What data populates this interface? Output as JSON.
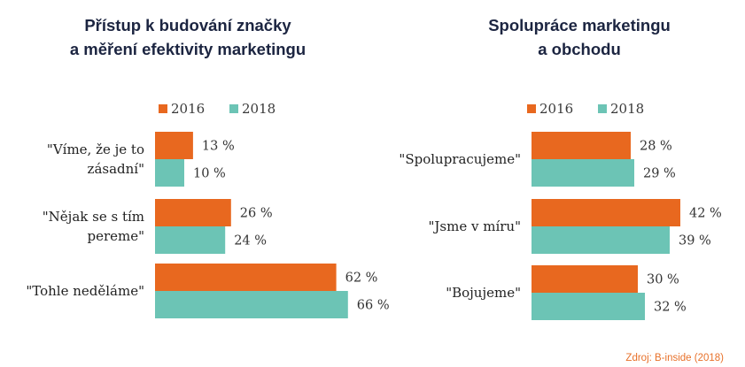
{
  "colors": {
    "y2016": "#e8681f",
    "y2018": "#6cc4b5"
  },
  "source": "Zdroj: B-inside (2018)",
  "chart_data": [
    {
      "type": "bar",
      "orientation": "horizontal",
      "title": [
        "Přístup k budování značky",
        "a měření efektivity marketingu"
      ],
      "legend": [
        "2016",
        "2018"
      ],
      "categories": [
        [
          "\"Víme, že je to",
          "zásadní\""
        ],
        [
          "\"Nějak se s tím",
          "pereme\""
        ],
        [
          "\"Tohle neděláme\""
        ]
      ],
      "series": [
        {
          "name": "2016",
          "values": [
            13,
            26,
            62
          ],
          "labels": [
            "13 %",
            "26 %",
            "62 %"
          ]
        },
        {
          "name": "2018",
          "values": [
            10,
            24,
            66
          ],
          "labels": [
            "10 %",
            "24 %",
            "66 %"
          ]
        }
      ],
      "unit": "%"
    },
    {
      "type": "bar",
      "orientation": "horizontal",
      "title": [
        "Spolupráce marketingu",
        "a obchodu"
      ],
      "legend": [
        "2016",
        "2018"
      ],
      "categories": [
        [
          "\"Spolupracujeme\""
        ],
        [
          "\"Jsme v míru\""
        ],
        [
          "\"Bojujeme\""
        ]
      ],
      "series": [
        {
          "name": "2016",
          "values": [
            28,
            42,
            30
          ],
          "labels": [
            "28 %",
            "42 %",
            "30 %"
          ]
        },
        {
          "name": "2018",
          "values": [
            29,
            39,
            32
          ],
          "labels": [
            "29 %",
            "39 %",
            "32 %"
          ]
        }
      ],
      "unit": "%"
    }
  ]
}
